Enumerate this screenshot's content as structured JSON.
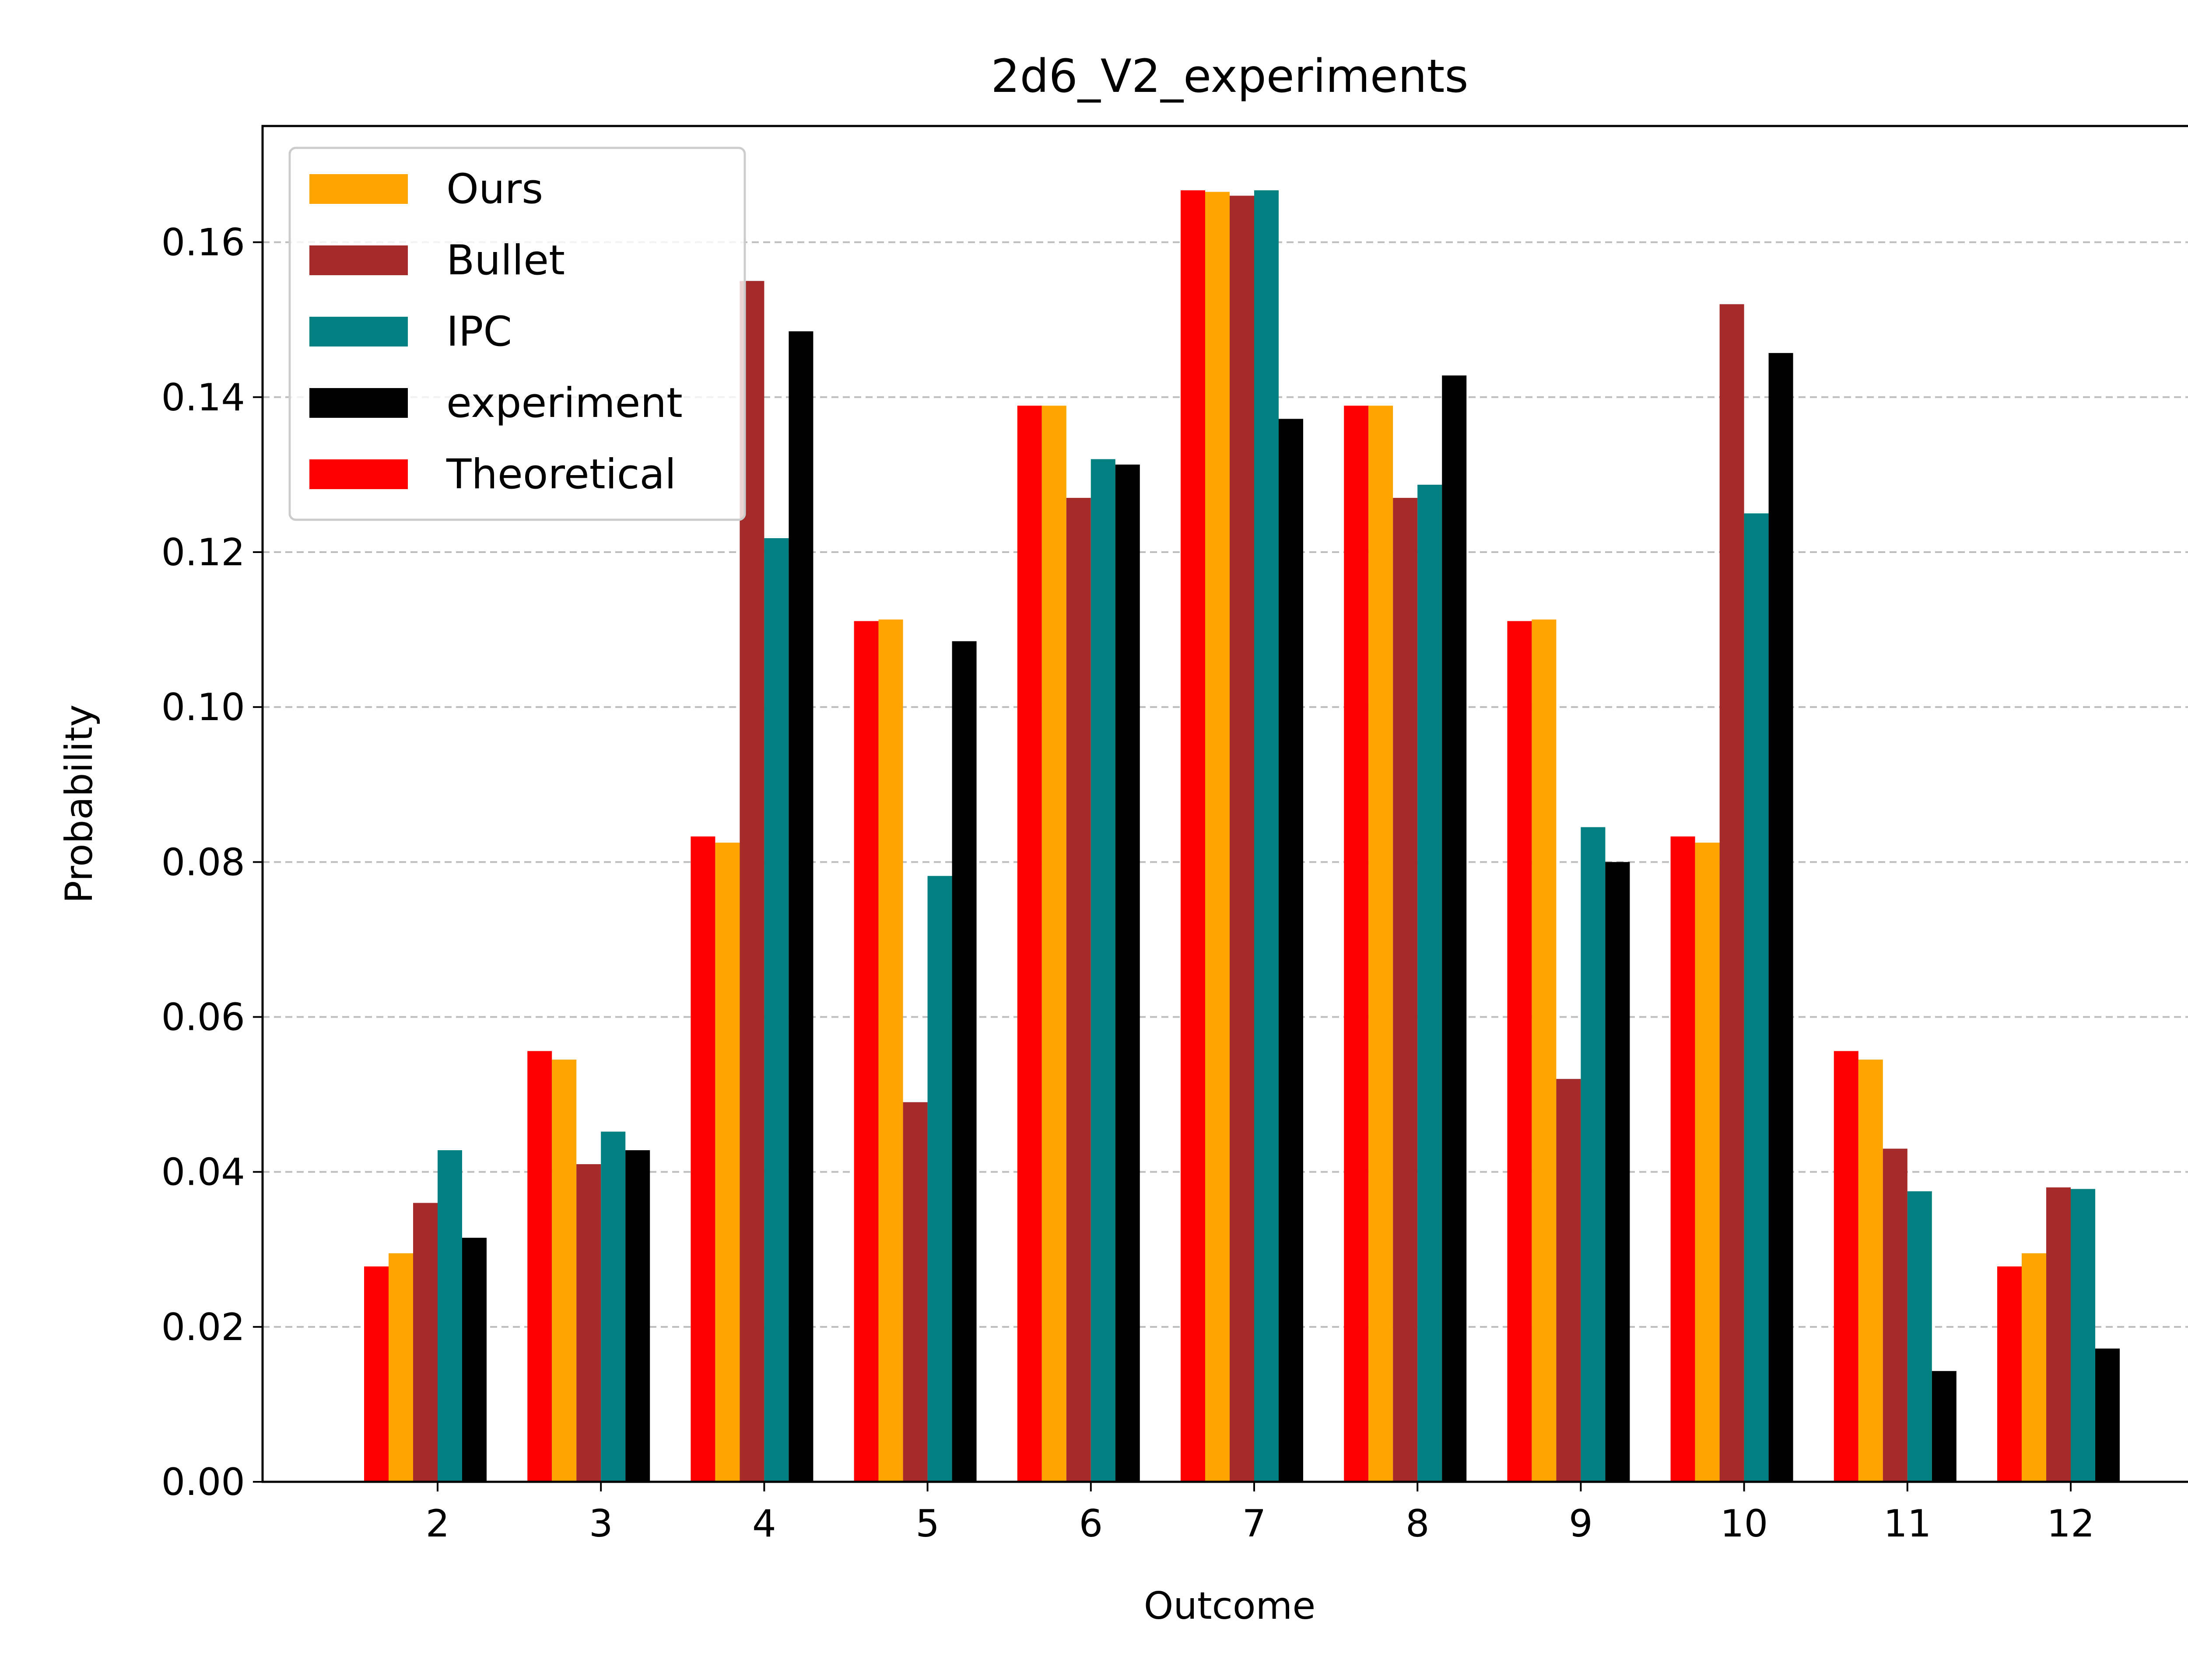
{
  "chart_data": {
    "type": "bar",
    "title": "2d6_V2_experiments",
    "xlabel": "Outcome",
    "ylabel": "Probability",
    "categories": [
      "2",
      "3",
      "4",
      "5",
      "6",
      "7",
      "8",
      "9",
      "10",
      "11",
      "12"
    ],
    "ylim": [
      0,
      0.175
    ],
    "yticks": [
      "0.00",
      "0.02",
      "0.04",
      "0.06",
      "0.08",
      "0.10",
      "0.12",
      "0.14",
      "0.16"
    ],
    "grid": "horizontal dashed",
    "legend_position": "top-left",
    "series": [
      {
        "name": "Theoretical",
        "color": "#ff0000",
        "values": [
          0.0278,
          0.0556,
          0.0833,
          0.1111,
          0.1389,
          0.1667,
          0.1389,
          0.1111,
          0.0833,
          0.0556,
          0.0278
        ]
      },
      {
        "name": "Ours",
        "color": "#ffa500",
        "values": [
          0.0295,
          0.0545,
          0.0825,
          0.1113,
          0.1389,
          0.1665,
          0.1389,
          0.1113,
          0.0825,
          0.0545,
          0.0295
        ]
      },
      {
        "name": "Bullet",
        "color": "#a52a2a",
        "values": [
          0.036,
          0.041,
          0.155,
          0.049,
          0.127,
          0.166,
          0.127,
          0.052,
          0.152,
          0.043,
          0.038
        ]
      },
      {
        "name": "IPC",
        "color": "#008080",
        "values": [
          0.0428,
          0.0452,
          0.1218,
          0.0782,
          0.132,
          0.1667,
          0.1287,
          0.0845,
          0.125,
          0.0375,
          0.0378
        ]
      },
      {
        "name": "experiment",
        "color": "#000000",
        "values": [
          0.0315,
          0.0428,
          0.1485,
          0.1085,
          0.1313,
          0.1372,
          0.1428,
          0.08,
          0.1457,
          0.0143,
          0.0172
        ]
      }
    ],
    "legend_order": [
      "Ours",
      "Bullet",
      "IPC",
      "experiment",
      "Theoretical"
    ]
  }
}
